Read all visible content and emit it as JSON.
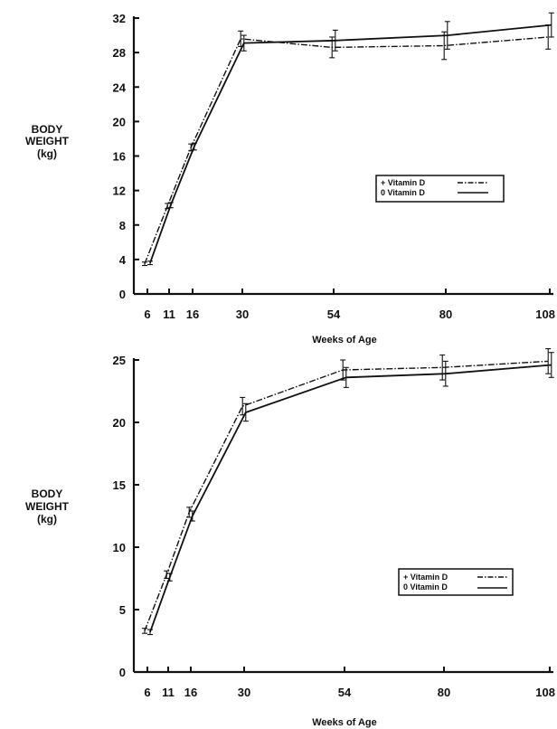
{
  "chart_data": [
    {
      "type": "line",
      "ylabel": [
        "BODY",
        "WEIGHT",
        "(kg)"
      ],
      "xlabel": "Weeks of Age",
      "x": [
        6,
        11,
        16,
        30,
        54,
        80,
        108
      ],
      "x_ticks": [
        "6",
        "11",
        "16",
        "30",
        "54",
        "80",
        "108"
      ],
      "y_ticks": [
        "0",
        "4",
        "8",
        "12",
        "16",
        "20",
        "24",
        "28",
        "32"
      ],
      "ylim": [
        0,
        32
      ],
      "legend_position": "center-right",
      "series": [
        {
          "name": "+ Vitamin D",
          "style": "dash-dot",
          "values": [
            3.5,
            10.2,
            17.0,
            29.6,
            28.6,
            28.8,
            29.8
          ]
        },
        {
          "name": "0 Vitamin D",
          "style": "solid",
          "values": [
            3.6,
            10.3,
            17.1,
            29.1,
            29.4,
            30.0,
            31.2
          ]
        }
      ]
    },
    {
      "type": "line",
      "ylabel": [
        "BODY",
        "WEIGHT",
        "(kg)"
      ],
      "xlabel": "Weeks of Age",
      "x": [
        6,
        11,
        16,
        30,
        54,
        80,
        108
      ],
      "x_ticks": [
        "6",
        "11",
        "16",
        "30",
        "54",
        "80",
        "108"
      ],
      "y_ticks": [
        "0",
        "5",
        "10",
        "15",
        "20",
        "25"
      ],
      "ylim": [
        0,
        25
      ],
      "legend_position": "center-right",
      "series": [
        {
          "name": "+ Vitamin D",
          "style": "dash-dot",
          "values": [
            3.3,
            7.8,
            12.8,
            21.3,
            24.2,
            24.4,
            24.9
          ]
        },
        {
          "name": "0 Vitamin D",
          "style": "solid",
          "values": [
            3.2,
            7.6,
            12.5,
            20.8,
            23.6,
            23.9,
            24.6
          ]
        }
      ]
    }
  ]
}
